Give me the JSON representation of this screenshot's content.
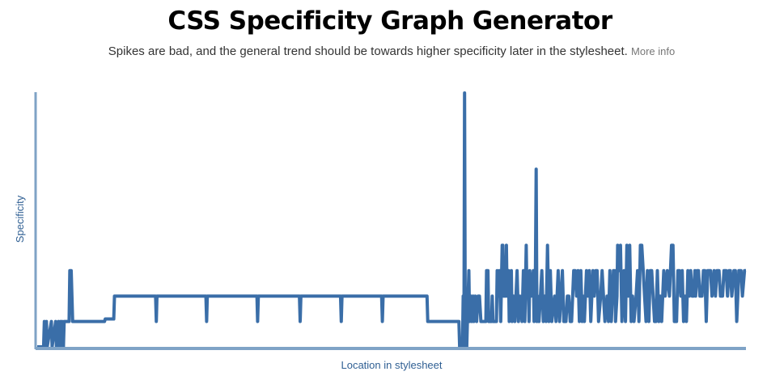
{
  "header": {
    "title": "CSS Specificity Graph Generator",
    "subtitle": "Spikes are bad, and the general trend should be towards higher specificity later in the stylesheet.",
    "more_info": "More info"
  },
  "colors": {
    "line": "#3a6ea8",
    "axis": "#7fa3c6",
    "label": "#2f5f93"
  },
  "chart_data": {
    "type": "line",
    "title": "",
    "xlabel": "Location in stylesheet",
    "ylabel": "Specificity",
    "xlim": [
      0,
      1000
    ],
    "ylim": [
      0,
      100
    ],
    "grid": false,
    "series": [
      {
        "values": [
          [
            0,
            0
          ],
          [
            9,
            0
          ],
          [
            10,
            10
          ],
          [
            11,
            0
          ],
          [
            13,
            10
          ],
          [
            14,
            0
          ],
          [
            20,
            10
          ],
          [
            21,
            0
          ],
          [
            26,
            10
          ],
          [
            27,
            0
          ],
          [
            30,
            10
          ],
          [
            31,
            0
          ],
          [
            33,
            10
          ],
          [
            34,
            0
          ],
          [
            35,
            10
          ],
          [
            36,
            0
          ],
          [
            37,
            0
          ],
          [
            38,
            10
          ],
          [
            39,
            10
          ],
          [
            45,
            10
          ],
          [
            46,
            30
          ],
          [
            47,
            30
          ],
          [
            48,
            30
          ],
          [
            49,
            20
          ],
          [
            50,
            10
          ],
          [
            55,
            10
          ],
          [
            95,
            10
          ],
          [
            96,
            11
          ],
          [
            108,
            11
          ],
          [
            109,
            20
          ],
          [
            167,
            20
          ],
          [
            168,
            10
          ],
          [
            169,
            20
          ],
          [
            238,
            20
          ],
          [
            239,
            10
          ],
          [
            240,
            20
          ],
          [
            310,
            20
          ],
          [
            311,
            10
          ],
          [
            312,
            20
          ],
          [
            370,
            20
          ],
          [
            371,
            10
          ],
          [
            372,
            20
          ],
          [
            428,
            20
          ],
          [
            429,
            10
          ],
          [
            430,
            20
          ],
          [
            486,
            20
          ],
          [
            487,
            10
          ],
          [
            488,
            20
          ],
          [
            550,
            20
          ],
          [
            551,
            10
          ],
          [
            595,
            10
          ],
          [
            596,
            0
          ],
          [
            600,
            0
          ],
          [
            601,
            20
          ],
          [
            602,
            0
          ],
          [
            603,
            100
          ],
          [
            604,
            0
          ],
          [
            605,
            20
          ],
          [
            606,
            0
          ],
          [
            607,
            10
          ],
          [
            609,
            30
          ],
          [
            610,
            10
          ],
          [
            612,
            20
          ],
          [
            613,
            10
          ],
          [
            615,
            20
          ],
          [
            616,
            10
          ],
          [
            618,
            20
          ],
          [
            620,
            10
          ],
          [
            622,
            20
          ],
          [
            624,
            20
          ],
          [
            626,
            10
          ],
          [
            630,
            10
          ],
          [
            633,
            10
          ],
          [
            634,
            30
          ],
          [
            636,
            30
          ],
          [
            637,
            10
          ],
          [
            641,
            10
          ],
          [
            642,
            20
          ],
          [
            643,
            10
          ],
          [
            648,
            10
          ],
          [
            649,
            30
          ],
          [
            650,
            20
          ],
          [
            652,
            30
          ],
          [
            654,
            10
          ],
          [
            656,
            40
          ],
          [
            657,
            40
          ],
          [
            658,
            20
          ],
          [
            661,
            20
          ],
          [
            662,
            40
          ],
          [
            663,
            20
          ],
          [
            665,
            30
          ],
          [
            666,
            10
          ],
          [
            669,
            30
          ],
          [
            670,
            10
          ],
          [
            672,
            20
          ],
          [
            674,
            10
          ],
          [
            677,
            30
          ],
          [
            679,
            10
          ],
          [
            681,
            20
          ],
          [
            684,
            10
          ],
          [
            686,
            30
          ],
          [
            688,
            10
          ],
          [
            690,
            40
          ],
          [
            691,
            20
          ],
          [
            693,
            20
          ],
          [
            694,
            10
          ],
          [
            695,
            30
          ],
          [
            697,
            20
          ],
          [
            700,
            30
          ],
          [
            701,
            10
          ],
          [
            703,
            30
          ],
          [
            704,
            70
          ],
          [
            705,
            10
          ],
          [
            706,
            20
          ],
          [
            708,
            10
          ],
          [
            710,
            20
          ],
          [
            712,
            30
          ],
          [
            714,
            10
          ],
          [
            716,
            20
          ],
          [
            718,
            10
          ],
          [
            720,
            40
          ],
          [
            722,
            10
          ],
          [
            724,
            30
          ],
          [
            726,
            10
          ],
          [
            730,
            20
          ],
          [
            732,
            10
          ],
          [
            735,
            30
          ],
          [
            737,
            10
          ],
          [
            739,
            20
          ],
          [
            741,
            30
          ],
          [
            743,
            10
          ],
          [
            746,
            10
          ],
          [
            748,
            20
          ],
          [
            750,
            20
          ],
          [
            752,
            10
          ],
          [
            754,
            10
          ],
          [
            757,
            30
          ],
          [
            759,
            30
          ],
          [
            761,
            20
          ],
          [
            763,
            30
          ],
          [
            765,
            10
          ],
          [
            767,
            30
          ],
          [
            769,
            10
          ],
          [
            770,
            20
          ],
          [
            772,
            10
          ],
          [
            775,
            30
          ],
          [
            777,
            20
          ],
          [
            779,
            30
          ],
          [
            781,
            10
          ],
          [
            784,
            30
          ],
          [
            786,
            20
          ],
          [
            788,
            30
          ],
          [
            790,
            30
          ],
          [
            792,
            10
          ],
          [
            795,
            20
          ],
          [
            797,
            30
          ],
          [
            799,
            20
          ],
          [
            801,
            10
          ],
          [
            804,
            20
          ],
          [
            806,
            10
          ],
          [
            808,
            30
          ],
          [
            810,
            10
          ],
          [
            813,
            30
          ],
          [
            815,
            30
          ],
          [
            816,
            10
          ],
          [
            818,
            20
          ],
          [
            819,
            40
          ],
          [
            821,
            30
          ],
          [
            823,
            40
          ],
          [
            825,
            10
          ],
          [
            828,
            30
          ],
          [
            830,
            10
          ],
          [
            832,
            40
          ],
          [
            834,
            20
          ],
          [
            836,
            40
          ],
          [
            838,
            10
          ],
          [
            840,
            20
          ],
          [
            842,
            10
          ],
          [
            845,
            20
          ],
          [
            847,
            30
          ],
          [
            849,
            10
          ],
          [
            851,
            40
          ],
          [
            853,
            40
          ],
          [
            855,
            30
          ],
          [
            857,
            20
          ],
          [
            859,
            10
          ],
          [
            861,
            30
          ],
          [
            863,
            10
          ],
          [
            865,
            30
          ],
          [
            867,
            30
          ],
          [
            869,
            20
          ],
          [
            871,
            10
          ],
          [
            873,
            10
          ],
          [
            875,
            30
          ],
          [
            877,
            10
          ],
          [
            879,
            20
          ],
          [
            881,
            10
          ],
          [
            884,
            30
          ],
          [
            886,
            20
          ],
          [
            889,
            30
          ],
          [
            892,
            20
          ],
          [
            895,
            40
          ],
          [
            897,
            40
          ],
          [
            899,
            10
          ],
          [
            902,
            10
          ],
          [
            904,
            30
          ],
          [
            906,
            30
          ],
          [
            908,
            20
          ],
          [
            910,
            30
          ],
          [
            912,
            10
          ],
          [
            914,
            20
          ],
          [
            916,
            10
          ],
          [
            918,
            30
          ],
          [
            920,
            20
          ],
          [
            922,
            30
          ],
          [
            924,
            20
          ],
          [
            926,
            20
          ],
          [
            928,
            30
          ],
          [
            929,
            20
          ],
          [
            931,
            30
          ],
          [
            933,
            30
          ],
          [
            935,
            20
          ],
          [
            938,
            20
          ],
          [
            940,
            30
          ],
          [
            942,
            30
          ],
          [
            944,
            10
          ],
          [
            946,
            30
          ],
          [
            950,
            30
          ],
          [
            952,
            20
          ],
          [
            955,
            30
          ],
          [
            957,
            20
          ],
          [
            959,
            30
          ],
          [
            962,
            30
          ],
          [
            964,
            20
          ],
          [
            967,
            20
          ],
          [
            969,
            30
          ],
          [
            972,
            30
          ],
          [
            974,
            20
          ],
          [
            976,
            30
          ],
          [
            978,
            30
          ],
          [
            980,
            20
          ],
          [
            983,
            30
          ],
          [
            985,
            30
          ],
          [
            987,
            10
          ],
          [
            990,
            30
          ],
          [
            993,
            30
          ],
          [
            995,
            20
          ],
          [
            998,
            30
          ],
          [
            1000,
            30
          ]
        ]
      }
    ]
  }
}
